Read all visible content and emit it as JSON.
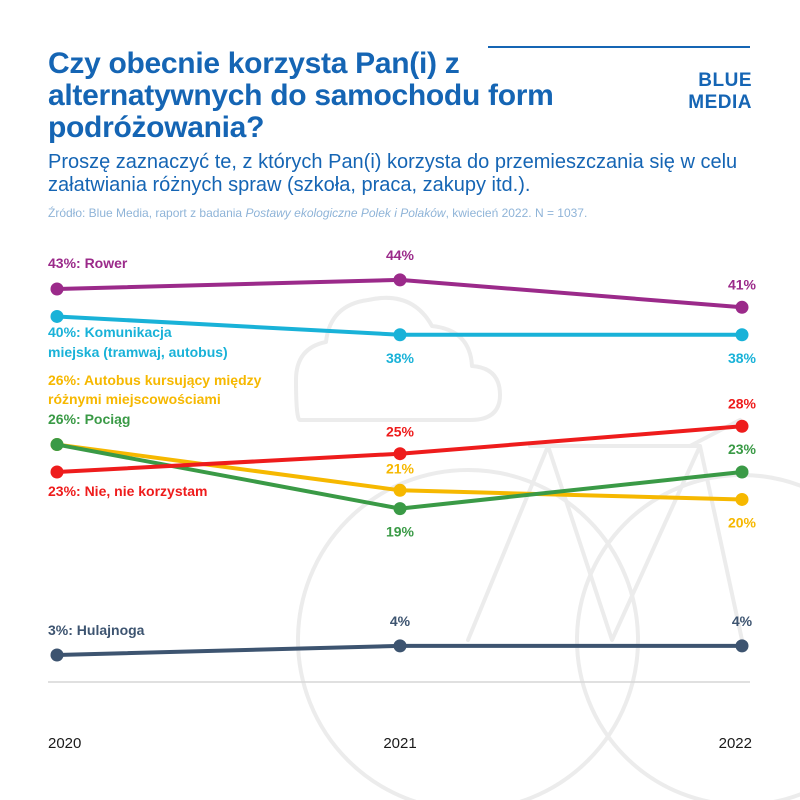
{
  "header": {
    "title": "Czy obecnie korzysta Pan(i) z alternatywnych do samochodu form podróżowania?",
    "subtitle": "Proszę zaznaczyć te, z których Pan(i) korzysta do przemieszczania się w celu załatwiania różnych spraw (szkoła, praca, zakupy itd.).",
    "source_prefix": "Źródło: Blue Media, raport z badania ",
    "source_italic": "Postawy ekologiczne Polek i Polaków",
    "source_suffix": ", kwiecień 2022. N = 1037."
  },
  "logo": {
    "line1": "BLUE",
    "line2": "MEDIA",
    "color": "#1565b4"
  },
  "chart_data": {
    "type": "line",
    "x": [
      "2020",
      "2021",
      "2022"
    ],
    "ylim": [
      0,
      50
    ],
    "grid": false,
    "legend": "labels at series start",
    "series": [
      {
        "name": "Rower",
        "values": [
          43,
          44,
          41
        ],
        "color": "#9b2a8a",
        "label": "43%: Rower",
        "point_labels": [
          "",
          "44%",
          "41%"
        ]
      },
      {
        "name": "Komunikacja miejska (tramwaj, autobus)",
        "values": [
          40,
          38,
          38
        ],
        "color": "#19b2d8",
        "label_lines": [
          "40%: Komunikacja",
          "miejska (tramwaj, autobus)"
        ],
        "point_labels": [
          "",
          "38%",
          "38%"
        ]
      },
      {
        "name": "Autobus kursujący między różnymi miejscowościami",
        "values": [
          26,
          21,
          20
        ],
        "color": "#f6b800",
        "label_lines": [
          "26%: Autobus kursujący między",
          "różnymi miejscowościami"
        ],
        "point_labels": [
          "",
          "21%",
          "20%"
        ]
      },
      {
        "name": "Pociąg",
        "values": [
          26,
          19,
          23
        ],
        "color": "#3a9a46",
        "label": "26%: Pociąg",
        "point_labels": [
          "",
          "19%",
          "23%"
        ]
      },
      {
        "name": "Nie, nie korzystam",
        "values": [
          23,
          25,
          28
        ],
        "color": "#ee1c1c",
        "label": "23%: Nie, nie korzystam",
        "point_labels": [
          "",
          "25%",
          "28%"
        ]
      },
      {
        "name": "Hulajnoga",
        "values": [
          3,
          4,
          4
        ],
        "color": "#3d5470",
        "label": "3%: Hulajnoga",
        "point_labels": [
          "",
          "4%",
          "4%"
        ]
      }
    ]
  }
}
